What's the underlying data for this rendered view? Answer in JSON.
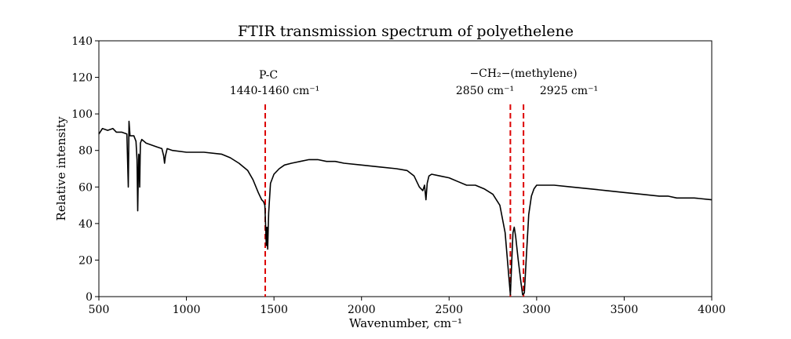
{
  "chart_data": {
    "type": "line",
    "title": "FTIR transmission spectrum of polyethelene",
    "xlabel": "Wavenumber, cm⁻¹",
    "ylabel": "Relative intensity",
    "xlim": [
      500,
      4000
    ],
    "ylim": [
      0,
      140
    ],
    "x_ticks": [
      500,
      1000,
      1500,
      2000,
      2500,
      3000,
      3500,
      4000
    ],
    "y_ticks": [
      0,
      20,
      40,
      60,
      80,
      100,
      120,
      140
    ],
    "grid": false,
    "series": [
      {
        "color": "#000000",
        "points": [
          [
            500,
            89
          ],
          [
            520,
            92
          ],
          [
            550,
            91
          ],
          [
            580,
            92
          ],
          [
            600,
            90
          ],
          [
            630,
            90
          ],
          [
            660,
            89
          ],
          [
            668,
            60
          ],
          [
            672,
            96
          ],
          [
            678,
            88
          ],
          [
            700,
            88
          ],
          [
            712,
            85
          ],
          [
            718,
            75
          ],
          [
            722,
            47
          ],
          [
            727,
            78
          ],
          [
            730,
            77
          ],
          [
            733,
            60
          ],
          [
            737,
            84
          ],
          [
            745,
            86
          ],
          [
            770,
            84
          ],
          [
            800,
            83
          ],
          [
            830,
            82
          ],
          [
            860,
            81
          ],
          [
            870,
            77
          ],
          [
            875,
            73
          ],
          [
            880,
            77
          ],
          [
            890,
            81
          ],
          [
            920,
            80
          ],
          [
            1000,
            79
          ],
          [
            1100,
            79
          ],
          [
            1200,
            78
          ],
          [
            1250,
            76
          ],
          [
            1300,
            73
          ],
          [
            1350,
            69
          ],
          [
            1380,
            64
          ],
          [
            1410,
            57
          ],
          [
            1430,
            53
          ],
          [
            1440,
            52
          ],
          [
            1448,
            50
          ],
          [
            1452,
            40
          ],
          [
            1456,
            28
          ],
          [
            1460,
            38
          ],
          [
            1464,
            26
          ],
          [
            1470,
            46
          ],
          [
            1480,
            62
          ],
          [
            1500,
            67
          ],
          [
            1530,
            70
          ],
          [
            1560,
            72
          ],
          [
            1600,
            73
          ],
          [
            1650,
            74
          ],
          [
            1700,
            75
          ],
          [
            1750,
            75
          ],
          [
            1800,
            74
          ],
          [
            1850,
            74
          ],
          [
            1900,
            73
          ],
          [
            2000,
            72
          ],
          [
            2100,
            71
          ],
          [
            2200,
            70
          ],
          [
            2260,
            69
          ],
          [
            2300,
            66
          ],
          [
            2330,
            60
          ],
          [
            2350,
            58
          ],
          [
            2360,
            61
          ],
          [
            2368,
            53
          ],
          [
            2375,
            62
          ],
          [
            2385,
            66
          ],
          [
            2400,
            67
          ],
          [
            2450,
            66
          ],
          [
            2500,
            65
          ],
          [
            2550,
            63
          ],
          [
            2600,
            61
          ],
          [
            2650,
            61
          ],
          [
            2700,
            59
          ],
          [
            2750,
            56
          ],
          [
            2790,
            50
          ],
          [
            2820,
            35
          ],
          [
            2840,
            12
          ],
          [
            2850,
            1
          ],
          [
            2858,
            20
          ],
          [
            2865,
            35
          ],
          [
            2872,
            38
          ],
          [
            2880,
            33
          ],
          [
            2895,
            20
          ],
          [
            2910,
            8
          ],
          [
            2920,
            1
          ],
          [
            2930,
            2
          ],
          [
            2940,
            20
          ],
          [
            2955,
            45
          ],
          [
            2970,
            55
          ],
          [
            2985,
            59
          ],
          [
            3000,
            61
          ],
          [
            3050,
            61
          ],
          [
            3100,
            61
          ],
          [
            3200,
            60
          ],
          [
            3300,
            59
          ],
          [
            3400,
            58
          ],
          [
            3500,
            57
          ],
          [
            3600,
            56
          ],
          [
            3700,
            55
          ],
          [
            3750,
            55
          ],
          [
            3800,
            54
          ],
          [
            3900,
            54
          ],
          [
            4000,
            53
          ]
        ]
      }
    ],
    "markers": [
      {
        "x": 1450,
        "color": "#dd0000",
        "style": "dashed"
      },
      {
        "x": 2850,
        "color": "#dd0000",
        "style": "dashed"
      },
      {
        "x": 2925,
        "color": "#dd0000",
        "style": "dashed"
      }
    ],
    "annotations": {
      "pc_name": "P-C",
      "pc_range": "1440-1460 cm⁻¹",
      "ch2_label": "−CH₂−(methylene)",
      "peak_2850": "2850 cm⁻¹",
      "peak_2925": "2925 cm⁻¹"
    }
  }
}
